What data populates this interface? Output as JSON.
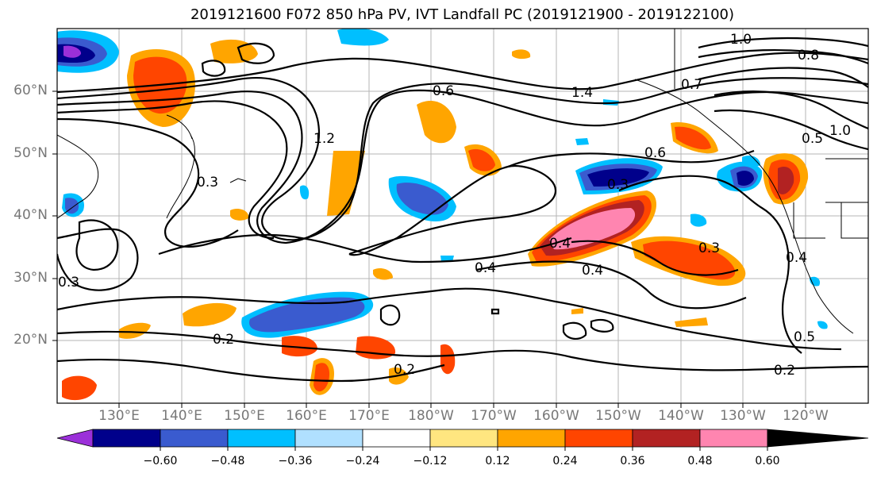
{
  "title": "2019121600 F072 850 hPa PV, IVT Landfall PC (2019121900 - 2019122100)",
  "lat_labels": [
    "60°N",
    "50°N",
    "40°N",
    "30°N",
    "20°N"
  ],
  "lon_labels": [
    "130°E",
    "140°E",
    "150°E",
    "160°E",
    "170°E",
    "180°W",
    "170°W",
    "160°W",
    "150°W",
    "140°W",
    "130°W",
    "120°W"
  ],
  "contour_labels": [
    "1.2",
    "1.4",
    "1.0",
    "0.8",
    "0.6",
    "0.4",
    "0.3",
    "0.2",
    "0.5",
    "0.7"
  ],
  "colorbar": {
    "colors": [
      "#9b30d9",
      "#00008b",
      "#3a5bcf",
      "#00bfff",
      "#b0e0ff",
      "#ffffff",
      "#ffe680",
      "#ffa500",
      "#ff4500",
      "#b22222",
      "#ff85b0"
    ],
    "tick_labels": [
      "−0.60",
      "−0.48",
      "−0.36",
      "−0.24",
      "−0.12",
      "0.12",
      "0.24",
      "0.36",
      "0.48",
      "0.60"
    ]
  }
}
